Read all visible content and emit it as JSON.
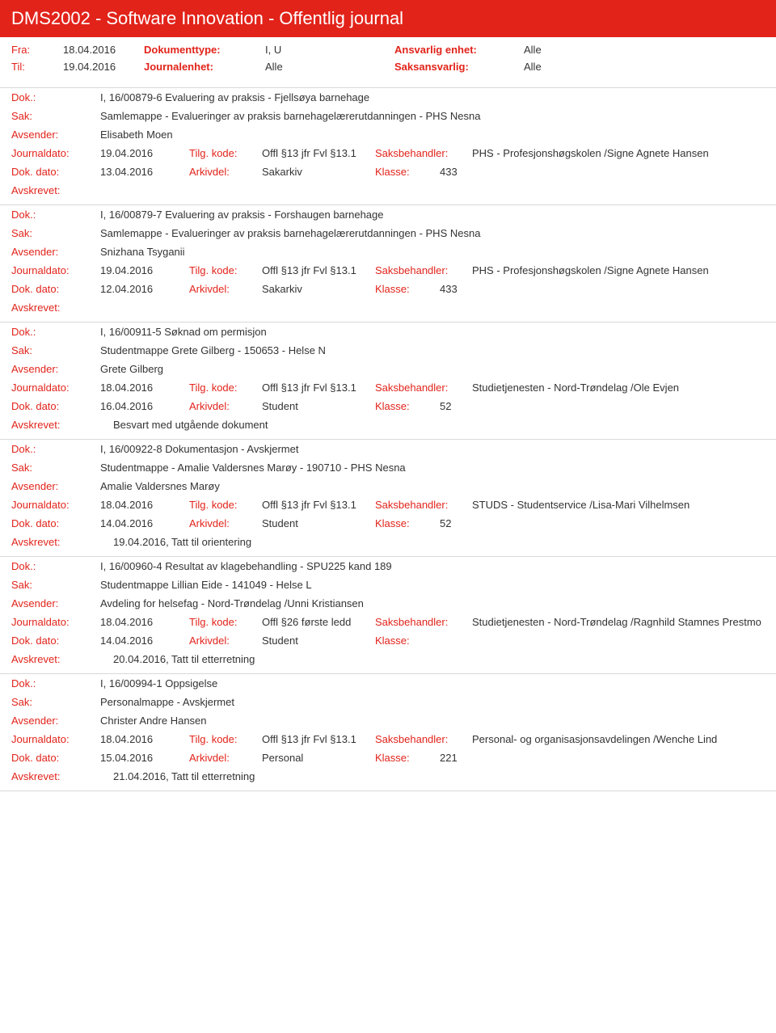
{
  "banner": "DMS2002 - Software Innovation - Offentlig journal",
  "header": {
    "fra_lbl": "Fra:",
    "fra": "18.04.2016",
    "til_lbl": "Til:",
    "til": "19.04.2016",
    "doktype_lbl": "Dokumenttype:",
    "doktype": "I, U",
    "journalenhet_lbl": "Journalenhet:",
    "journalenhet": "Alle",
    "ansvarlig_lbl": "Ansvarlig enhet:",
    "ansvarlig": "Alle",
    "saksansvarlig_lbl": "Saksansvarlig:",
    "saksansvarlig": "Alle"
  },
  "labels": {
    "dok": "Dok.:",
    "sak": "Sak:",
    "avsender": "Avsender:",
    "journaldato": "Journaldato:",
    "tilg": "Tilg. kode:",
    "saksbeh": "Saksbehandler:",
    "dokdato": "Dok. dato:",
    "arkivdel": "Arkivdel:",
    "klasse": "Klasse:",
    "avskrevet": "Avskrevet:"
  },
  "entries": [
    {
      "dok": "I, 16/00879-6 Evaluering av praksis - Fjellsøya barnehage",
      "sak": "Samlemappe - Evalueringer av praksis barnehagelærerutdanningen - PHS Nesna",
      "avsender": "Elisabeth Moen",
      "journaldato": "19.04.2016",
      "tilg": "Offl §13 jfr Fvl §13.1",
      "saksbeh": "PHS - Profesjonshøgskolen /Signe Agnete Hansen",
      "dokdato": "13.04.2016",
      "arkivdel": "Sakarkiv",
      "klasse": "433",
      "avskrevet": ""
    },
    {
      "dok": "I, 16/00879-7 Evaluering av praksis - Forshaugen barnehage",
      "sak": "Samlemappe - Evalueringer av praksis barnehagelærerutdanningen - PHS Nesna",
      "avsender": "Snizhana Tsyganii",
      "journaldato": "19.04.2016",
      "tilg": "Offl §13 jfr Fvl §13.1",
      "saksbeh": "PHS - Profesjonshøgskolen /Signe Agnete Hansen",
      "dokdato": "12.04.2016",
      "arkivdel": "Sakarkiv",
      "klasse": "433",
      "avskrevet": ""
    },
    {
      "dok": "I, 16/00911-5 Søknad om permisjon",
      "sak": "Studentmappe Grete Gilberg - 150653 - Helse N",
      "avsender": "Grete Gilberg",
      "journaldato": "18.04.2016",
      "tilg": "Offl §13 jfr Fvl §13.1",
      "saksbeh": "Studietjenesten - Nord-Trøndelag /Ole Evjen",
      "dokdato": "16.04.2016",
      "arkivdel": "Student",
      "klasse": "52",
      "avskrevet": "Besvart med utgående dokument"
    },
    {
      "dok": "I, 16/00922-8 Dokumentasjon - Avskjermet",
      "sak": "Studentmappe - Amalie Valdersnes Marøy - 190710 - PHS Nesna",
      "avsender": "Amalie Valdersnes Marøy",
      "journaldato": "18.04.2016",
      "tilg": "Offl §13 jfr Fvl §13.1",
      "saksbeh": "STUDS - Studentservice /Lisa-Mari Vilhelmsen",
      "dokdato": "14.04.2016",
      "arkivdel": "Student",
      "klasse": "52",
      "avskrevet": "19.04.2016, Tatt til orientering"
    },
    {
      "dok": "I, 16/00960-4 Resultat av klagebehandling - SPU225 kand 189",
      "sak": "Studentmappe Lillian Eide - 141049 - Helse L",
      "avsender": "Avdeling for helsefag - Nord-Trøndelag /Unni Kristiansen",
      "journaldato": "18.04.2016",
      "tilg": "Offl §26 første ledd",
      "saksbeh": "Studietjenesten - Nord-Trøndelag /Ragnhild Stamnes Prestmo",
      "dokdato": "14.04.2016",
      "arkivdel": "Student",
      "klasse": "",
      "avskrevet": "20.04.2016, Tatt til etterretning"
    },
    {
      "dok": "I, 16/00994-1 Oppsigelse",
      "sak": "Personalmappe - Avskjermet",
      "avsender": "Christer Andre Hansen",
      "journaldato": "18.04.2016",
      "tilg": "Offl §13 jfr Fvl §13.1",
      "saksbeh": "Personal- og organisasjonsavdelingen /Wenche Lind",
      "dokdato": "15.04.2016",
      "arkivdel": "Personal",
      "klasse": "221",
      "avskrevet": "21.04.2016, Tatt til etterretning"
    }
  ]
}
